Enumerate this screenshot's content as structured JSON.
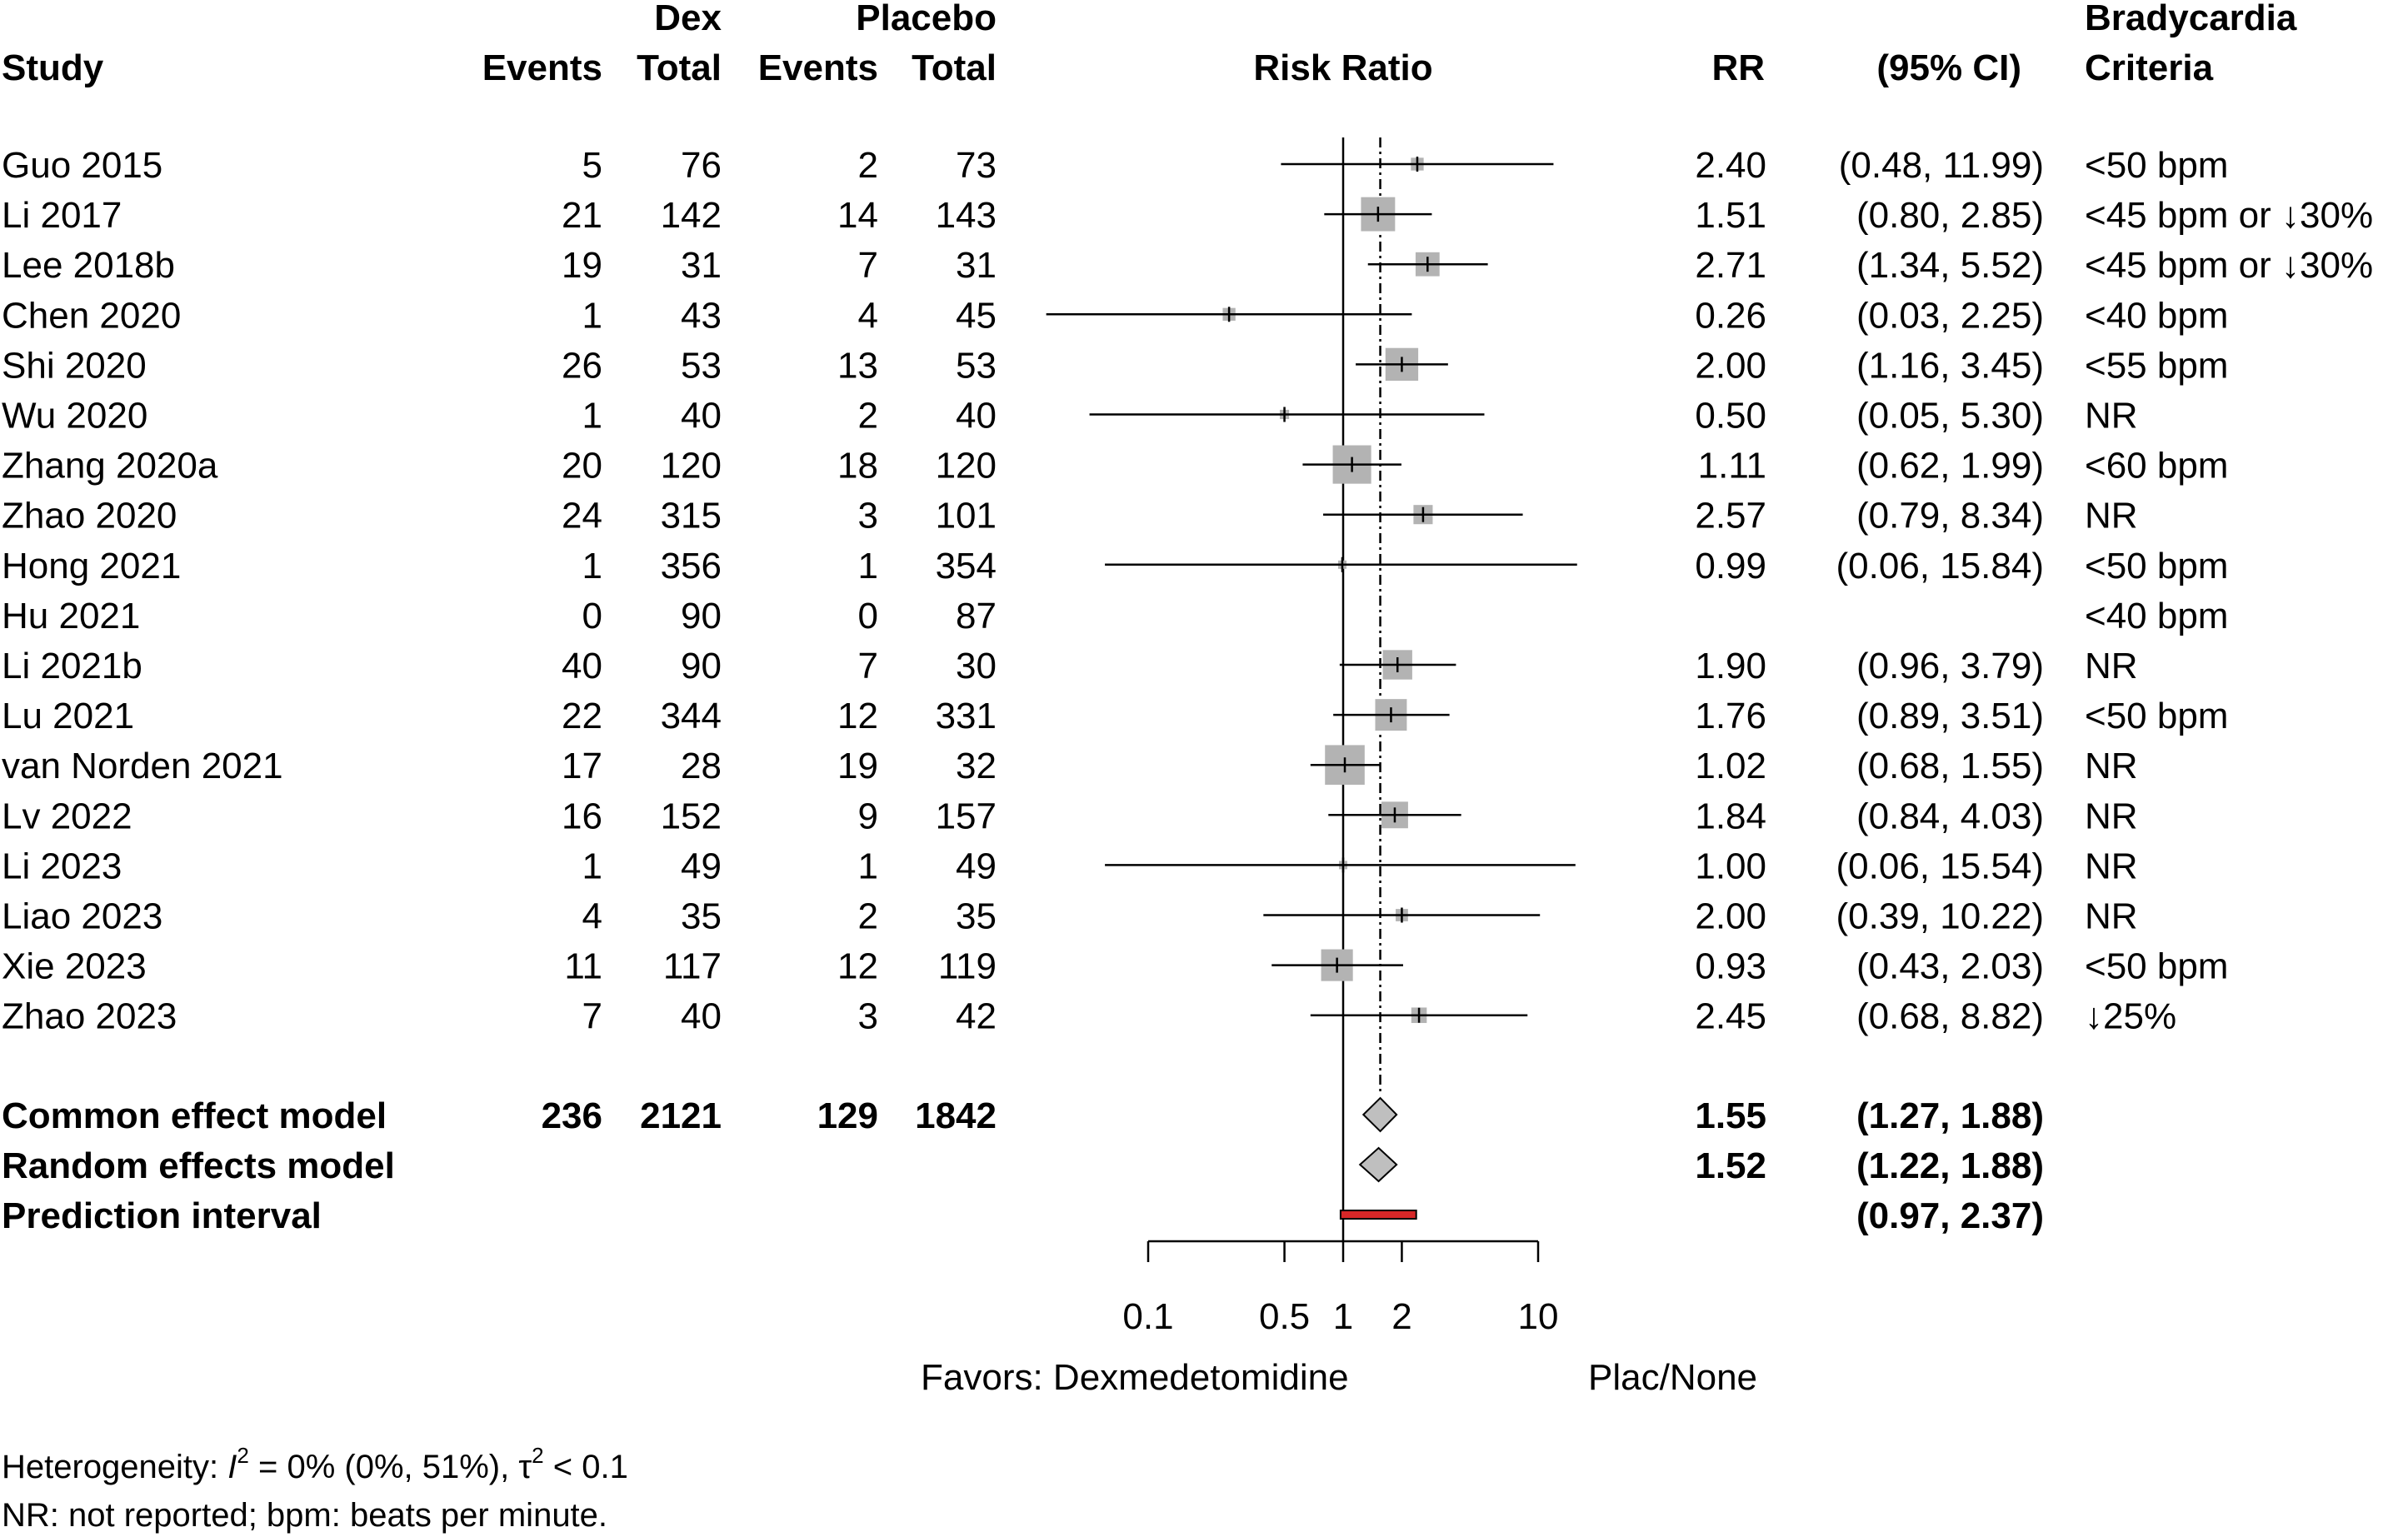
{
  "headers": {
    "study": "Study",
    "dex": "Dex",
    "placebo": "Placebo",
    "dex_events": "Events",
    "dex_total": "Total",
    "pla_events": "Events",
    "pla_total": "Total",
    "risk_ratio": "Risk Ratio",
    "rr": "RR",
    "ci": "(95% CI)",
    "brady1": "Bradycardia",
    "brady2": "Criteria"
  },
  "chart_data": {
    "type": "forest",
    "measure": "Risk Ratio",
    "scale": "log",
    "x_ticks": [
      {
        "value": 0.1,
        "label": "0.1"
      },
      {
        "value": 0.5,
        "label": "0.5"
      },
      {
        "value": 1,
        "label": "1"
      },
      {
        "value": 2,
        "label": "2"
      },
      {
        "value": 10,
        "label": "10"
      }
    ],
    "xlim": [
      0.1,
      10
    ],
    "null_line": 1,
    "pooled_line": 1.55,
    "favors_left": "Favors: Dexmedetomidine",
    "favors_right": "Plac/None",
    "studies": [
      {
        "study": "Guo 2015",
        "dex_events": "5",
        "dex_total": "76",
        "pla_events": "2",
        "pla_total": "73",
        "rr": 2.4,
        "lo": 0.48,
        "hi": 11.99,
        "rr_text": "2.40",
        "ci_text": "(0.48, 11.99)",
        "criteria": "<50 bpm",
        "weight": 1.5
      },
      {
        "study": "Li 2017",
        "dex_events": "21",
        "dex_total": "142",
        "pla_events": "14",
        "pla_total": "143",
        "rr": 1.51,
        "lo": 0.8,
        "hi": 2.85,
        "rr_text": "1.51",
        "ci_text": "(0.80,  2.85)",
        "criteria": "<45 bpm or ↓30%",
        "weight": 10.7
      },
      {
        "study": "Lee 2018b",
        "dex_events": "19",
        "dex_total": "31",
        "pla_events": "7",
        "pla_total": "31",
        "rr": 2.71,
        "lo": 1.34,
        "hi": 5.52,
        "rr_text": "2.71",
        "ci_text": "(1.34,  5.52)",
        "criteria": "<45 bpm or ↓30%",
        "weight": 5.3
      },
      {
        "study": "Chen 2020",
        "dex_events": "1",
        "dex_total": "43",
        "pla_events": "4",
        "pla_total": "45",
        "rr": 0.26,
        "lo": 0.03,
        "hi": 2.25,
        "rr_text": "0.26",
        "ci_text": "(0.03,  2.25)",
        "criteria": "<40 bpm",
        "weight": 1.5
      },
      {
        "study": "Shi 2020",
        "dex_events": "26",
        "dex_total": "53",
        "pla_events": "13",
        "pla_total": "53",
        "rr": 2.0,
        "lo": 1.16,
        "hi": 3.45,
        "rr_text": "2.00",
        "ci_text": "(1.16,  3.45)",
        "criteria": "<55 bpm",
        "weight": 9.9
      },
      {
        "study": "Wu 2020",
        "dex_events": "1",
        "dex_total": "40",
        "pla_events": "2",
        "pla_total": "40",
        "rr": 0.5,
        "lo": 0.05,
        "hi": 5.3,
        "rr_text": "0.50",
        "ci_text": "(0.05,  5.30)",
        "criteria": "NR",
        "weight": 0.8
      },
      {
        "study": "Zhang 2020a",
        "dex_events": "20",
        "dex_total": "120",
        "pla_events": "18",
        "pla_total": "120",
        "rr": 1.11,
        "lo": 0.62,
        "hi": 1.99,
        "rr_text": "1.11",
        "ci_text": "(0.62,  1.99)",
        "criteria": "<60 bpm",
        "weight": 13.6
      },
      {
        "study": "Zhao 2020",
        "dex_events": "24",
        "dex_total": "315",
        "pla_events": "3",
        "pla_total": "101",
        "rr": 2.57,
        "lo": 0.79,
        "hi": 8.34,
        "rr_text": "2.57",
        "ci_text": "(0.79,  8.34)",
        "criteria": "NR",
        "weight": 3.4
      },
      {
        "study": "Hong 2021",
        "dex_events": "1",
        "dex_total": "356",
        "pla_events": "1",
        "pla_total": "354",
        "rr": 0.99,
        "lo": 0.06,
        "hi": 15.84,
        "rr_text": "0.99",
        "ci_text": "(0.06, 15.84)",
        "criteria": "<50 bpm",
        "weight": 0.3
      },
      {
        "study": "Hu 2021",
        "dex_events": "0",
        "dex_total": "90",
        "pla_events": "0",
        "pla_total": "87",
        "rr": null,
        "lo": null,
        "hi": null,
        "rr_text": "",
        "ci_text": "",
        "criteria": "<40 bpm",
        "weight": 0
      },
      {
        "study": "Li 2021b",
        "dex_events": "40",
        "dex_total": "90",
        "pla_events": "7",
        "pla_total": "30",
        "rr": 1.9,
        "lo": 0.96,
        "hi": 3.79,
        "rr_text": "1.90",
        "ci_text": "(0.96,  3.79)",
        "criteria": "NR",
        "weight": 8.0
      },
      {
        "study": "Lu 2021",
        "dex_events": "22",
        "dex_total": "344",
        "pla_events": "12",
        "pla_total": "331",
        "rr": 1.76,
        "lo": 0.89,
        "hi": 3.51,
        "rr_text": "1.76",
        "ci_text": "(0.89,  3.51)",
        "criteria": "<50 bpm",
        "weight": 9.2
      },
      {
        "study": "van Norden 2021",
        "dex_events": "17",
        "dex_total": "28",
        "pla_events": "19",
        "pla_total": "32",
        "rr": 1.02,
        "lo": 0.68,
        "hi": 1.55,
        "rr_text": "1.02",
        "ci_text": "(0.68,  1.55)",
        "criteria": "NR",
        "weight": 14.5
      },
      {
        "study": "Lv 2022",
        "dex_events": "16",
        "dex_total": "152",
        "pla_events": "9",
        "pla_total": "157",
        "rr": 1.84,
        "lo": 0.84,
        "hi": 4.03,
        "rr_text": "1.84",
        "ci_text": "(0.84,  4.03)",
        "criteria": "NR",
        "weight": 6.5
      },
      {
        "study": "Li 2023",
        "dex_events": "1",
        "dex_total": "49",
        "pla_events": "1",
        "pla_total": "49",
        "rr": 1.0,
        "lo": 0.06,
        "hi": 15.54,
        "rr_text": "1.00",
        "ci_text": "(0.06, 15.54)",
        "criteria": "NR",
        "weight": 0.3
      },
      {
        "study": "Liao 2023",
        "dex_events": "4",
        "dex_total": "35",
        "pla_events": "2",
        "pla_total": "35",
        "rr": 2.0,
        "lo": 0.39,
        "hi": 10.22,
        "rr_text": "2.00",
        "ci_text": "(0.39, 10.22)",
        "criteria": "NR",
        "weight": 1.4
      },
      {
        "study": "Xie 2023",
        "dex_events": "11",
        "dex_total": "117",
        "pla_events": "12",
        "pla_total": "119",
        "rr": 0.93,
        "lo": 0.43,
        "hi": 2.03,
        "rr_text": "0.93",
        "ci_text": "(0.43,  2.03)",
        "criteria": "<50 bpm",
        "weight": 9.3
      },
      {
        "study": "Zhao 2023",
        "dex_events": "7",
        "dex_total": "40",
        "pla_events": "3",
        "pla_total": "42",
        "rr": 2.45,
        "lo": 0.68,
        "hi": 8.82,
        "rr_text": "2.45",
        "ci_text": "(0.68,  8.82)",
        "criteria": "↓25%",
        "weight": 2.2
      }
    ],
    "summaries": [
      {
        "label": "Common effect model",
        "dex_events": "236",
        "dex_total": "2121",
        "pla_events": "129",
        "pla_total": "1842",
        "rr": 1.55,
        "lo": 1.27,
        "hi": 1.88,
        "rr_text": "1.55",
        "ci_text": "(1.27,  1.88)",
        "shape": "diamond"
      },
      {
        "label": "Random effects model",
        "dex_events": "",
        "dex_total": "",
        "pla_events": "",
        "pla_total": "",
        "rr": 1.52,
        "lo": 1.22,
        "hi": 1.88,
        "rr_text": "1.52",
        "ci_text": "(1.22,  1.88)",
        "shape": "diamond"
      },
      {
        "label": "Prediction interval",
        "dex_events": "",
        "dex_total": "",
        "pla_events": "",
        "pla_total": "",
        "rr": null,
        "lo": 0.97,
        "hi": 2.37,
        "rr_text": "",
        "ci_text": "(0.97,  2.37)",
        "shape": "bar"
      }
    ],
    "colors": {
      "square": "#b3b3b3",
      "diamond": "#bfbfbf",
      "prediction": "#d62728"
    }
  },
  "footnotes": {
    "heterogeneity_prefix": "Heterogeneity: ",
    "i2_symbol": "I",
    "i2_exp": "2",
    "i2_value": " = 0% (0%, 51%), ",
    "tau_symbol": "τ",
    "tau_exp": "2",
    "tau_value": " < 0.1",
    "abbreviations": "NR: not reported; bpm: beats per minute."
  }
}
